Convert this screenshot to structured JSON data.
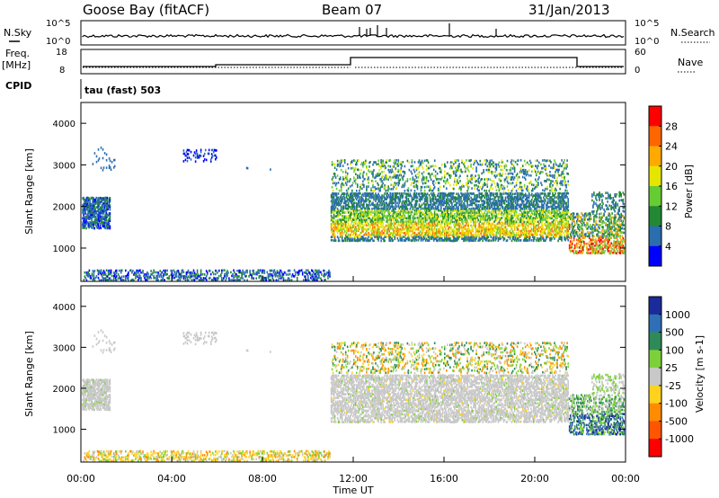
{
  "header": {
    "station": "Goose Bay (fitACF)",
    "beam": "Beam 07",
    "date": "31/Jan/2013"
  },
  "top_panels": {
    "nsky_label": "N.Sky",
    "nsky_ticks": [
      "10^5",
      "10^0"
    ],
    "nsearch_label": "N.Search",
    "nsearch_ticks": [
      "10^5",
      "10^0"
    ],
    "freq_label": "Freq.",
    "freq_unit": "[MHz]",
    "freq_ticks": [
      "18",
      "8"
    ],
    "nave_label": "Nave",
    "nave_ticks": [
      "60",
      "0"
    ],
    "cpid_label": "CPID",
    "cpid_value": "tau (fast) 503"
  },
  "chart_data": [
    {
      "type": "heatmap",
      "name": "power",
      "ylabel": "Slant Range [km]",
      "ylim": [
        200,
        4500
      ],
      "yticks": [
        "4000",
        "3000",
        "2000",
        "1000"
      ],
      "colorbar": {
        "label": "Power [dB]",
        "ticks": [
          "28",
          "24",
          "20",
          "16",
          "12",
          "8",
          "4"
        ],
        "colors": [
          "#ff0000",
          "#ff6600",
          "#ffaa00",
          "#e5e500",
          "#66cc33",
          "#228833",
          "#2a6eb0",
          "#0000ff"
        ]
      }
    },
    {
      "type": "heatmap",
      "name": "velocity",
      "ylabel": "Slant Range [km]",
      "ylim": [
        200,
        4500
      ],
      "yticks": [
        "4000",
        "3000",
        "2000",
        "1000"
      ],
      "xlabel": "Time UT",
      "xticks": [
        "00:00",
        "04:00",
        "08:00",
        "12:00",
        "16:00",
        "20:00",
        "00:00"
      ],
      "colorbar": {
        "label": "Velocity [m s-1]",
        "ticks": [
          "1000",
          "500",
          "100",
          "25",
          "-25",
          "-100",
          "-500",
          "-1000"
        ],
        "colors": [
          "#1a2b9a",
          "#2f6fb5",
          "#2e8b57",
          "#7cd13a",
          "#c8c8c8",
          "#ffd21f",
          "#ff8c00",
          "#ff5500",
          "#ff0000"
        ]
      }
    }
  ],
  "colors": {
    "power_ground": "#2050c8",
    "velocity_gray": "#c8c6c0"
  }
}
